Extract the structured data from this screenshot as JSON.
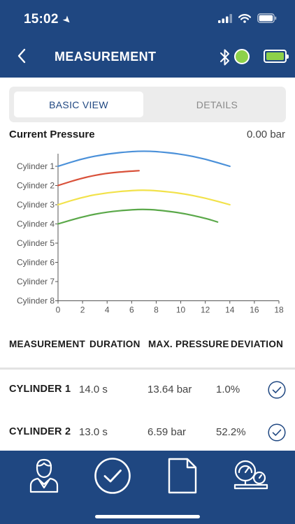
{
  "status": {
    "time": "15:02"
  },
  "header": {
    "title": "MEASUREMENT",
    "battery_color": "#8dd14a",
    "connection_color": "#8dd14a"
  },
  "tabs": [
    {
      "label": "BASIC VIEW",
      "active": true
    },
    {
      "label": "DETAILS",
      "active": false
    }
  ],
  "current_pressure": {
    "label": "Current Pressure",
    "value": "0.00 bar"
  },
  "chart_data": {
    "type": "line",
    "x": {
      "ticks": [
        0,
        2,
        4,
        6,
        8,
        10,
        12,
        14,
        16,
        18
      ],
      "range": [
        0,
        18
      ]
    },
    "categories": [
      "Cylinder 1",
      "Cylinder 2",
      "Cylinder 3",
      "Cylinder 4",
      "Cylinder 5",
      "Cylinder 6",
      "Cylinder 7",
      "Cylinder 8"
    ],
    "series": [
      {
        "color": "#4a90d9",
        "points": [
          [
            0,
            1
          ],
          [
            2,
            0.6
          ],
          [
            4,
            0.35
          ],
          [
            6,
            0.23
          ],
          [
            7,
            0.21
          ],
          [
            8,
            0.23
          ],
          [
            10,
            0.36
          ],
          [
            12,
            0.62
          ],
          [
            14,
            1
          ]
        ]
      },
      {
        "color": "#d9513a",
        "points": [
          [
            0,
            2
          ],
          [
            2,
            1.6
          ],
          [
            4,
            1.35
          ],
          [
            6,
            1.25
          ],
          [
            6.6,
            1.23
          ]
        ]
      },
      {
        "color": "#f2e24a",
        "points": [
          [
            0,
            3
          ],
          [
            2,
            2.6
          ],
          [
            4,
            2.37
          ],
          [
            6,
            2.26
          ],
          [
            7,
            2.24
          ],
          [
            8,
            2.27
          ],
          [
            10,
            2.4
          ],
          [
            12,
            2.65
          ],
          [
            14,
            3
          ]
        ]
      },
      {
        "color": "#5aa849",
        "points": [
          [
            0,
            4
          ],
          [
            2,
            3.62
          ],
          [
            4,
            3.37
          ],
          [
            6,
            3.26
          ],
          [
            7,
            3.24
          ],
          [
            8,
            3.27
          ],
          [
            10,
            3.42
          ],
          [
            12,
            3.7
          ],
          [
            13,
            3.9
          ]
        ]
      }
    ]
  },
  "table": {
    "headers": [
      "MEASUREMENT",
      "DURATION",
      "MAX. PRESSURE",
      "DEVIATION"
    ],
    "rows": [
      {
        "name": "CYLINDER 1",
        "duration": "14.0 s",
        "max_pressure": "13.64 bar",
        "deviation": "1.0%"
      },
      {
        "name": "CYLINDER 2",
        "duration": "13.0 s",
        "max_pressure": "6.59 bar",
        "deviation": "52.2%"
      }
    ]
  },
  "bottom_nav": [
    {
      "icon": "operator-icon"
    },
    {
      "icon": "checkmark-icon"
    },
    {
      "icon": "document-icon"
    },
    {
      "icon": "gauges-icon"
    }
  ]
}
